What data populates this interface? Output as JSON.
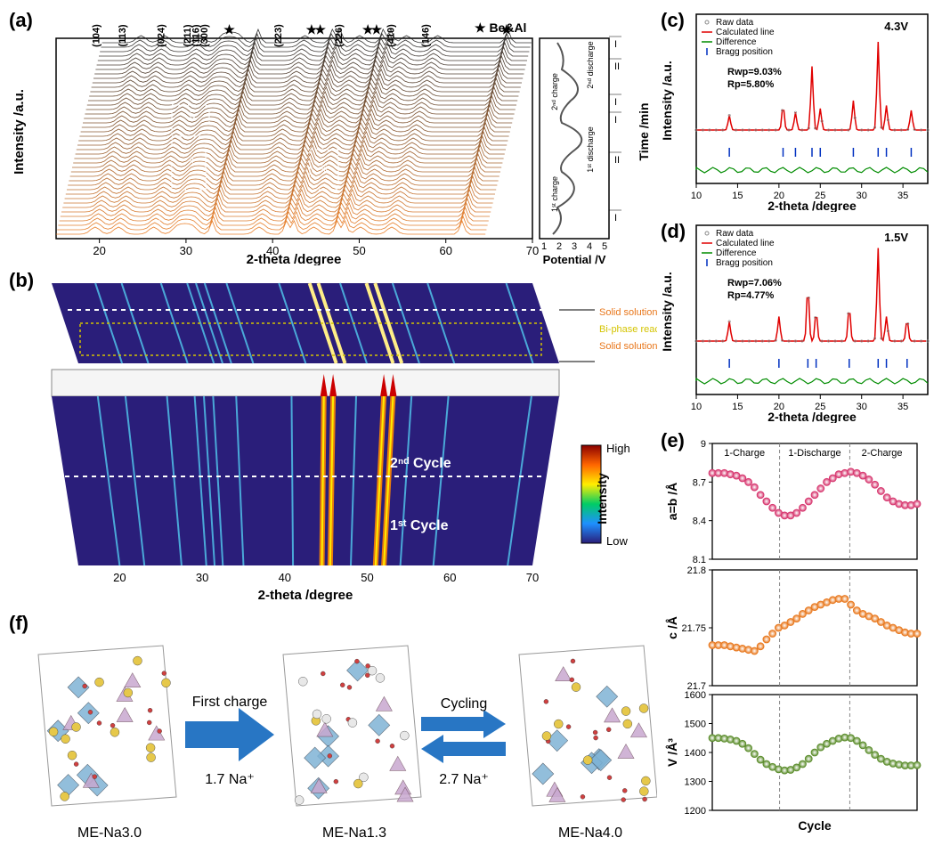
{
  "panelA": {
    "label": "(a)",
    "miller_indices": [
      "(104)",
      "(113)",
      "(024)",
      "(211)",
      "(116)",
      "(300)",
      "(223)",
      "(226)",
      "(410)",
      "(146)"
    ],
    "star_label": "★ Be&Al",
    "y_label": "Intensity /a.u.",
    "x_label": "2-theta /degree",
    "x_ticks": [
      "20",
      "30",
      "40",
      "50",
      "60",
      "70"
    ],
    "roman_labels": [
      "I",
      "II",
      "I",
      "I",
      "II",
      "I"
    ],
    "inner_markers": [
      "iv",
      "ii",
      "iii",
      "i"
    ],
    "potential_label": "Potential /V",
    "potential_ticks": [
      "1",
      "2",
      "3",
      "4",
      "5"
    ],
    "time_label": "Time /min",
    "charge_labels": [
      "1ˢᵗ charge",
      "2ⁿᵈ charge",
      "1ˢᵗ discharge",
      "2ⁿᵈ discharge"
    ],
    "waterfall_top_color": "#202020",
    "waterfall_bottom_color": "#e8761a"
  },
  "panelB": {
    "label": "(b)",
    "x_label": "2-theta /degree",
    "x_ticks": [
      "20",
      "30",
      "40",
      "50",
      "60",
      "70"
    ],
    "cycle_labels": [
      "1ˢᵗ Cycle",
      "2ⁿᵈ Cycle"
    ],
    "reaction_labels": [
      "Solid solution reaction",
      "Bi-phase reaction",
      "Solid solution reaction"
    ],
    "reaction_colors": [
      "#e8761a",
      "#d4c400",
      "#e8761a"
    ],
    "colorbar_label": "Intensity",
    "colorbar_high": "High",
    "colorbar_low": "Low",
    "heatmap_bg": "#2a1e7a",
    "heatmap_lines": "#4aa8d8"
  },
  "panelC": {
    "label": "(c)",
    "voltage": "4.3V",
    "legend": [
      "Raw data",
      "Calculated line",
      "Difference",
      "Bragg position"
    ],
    "legend_markers": [
      "circle",
      "line-red",
      "line-green",
      "tick-blue"
    ],
    "rwp": "Rwp=9.03%",
    "rp": "Rp=5.80%",
    "y_label": "Intensity /a.u.",
    "x_label": "2-theta /degree",
    "x_ticks": [
      "10",
      "15",
      "20",
      "25",
      "30",
      "35"
    ],
    "peaks": [
      14,
      20.5,
      22,
      24,
      25,
      29,
      32,
      33,
      36
    ],
    "peak_heights": [
      0.15,
      0.25,
      0.18,
      0.65,
      0.22,
      0.3,
      0.9,
      0.25,
      0.2
    ],
    "raw_color": "#888888",
    "calc_color": "#e00000",
    "diff_color": "#008c00",
    "bragg_color": "#0030c0"
  },
  "panelD": {
    "label": "(d)",
    "voltage": "1.5V",
    "legend": [
      "Raw data",
      "Calculated line",
      "Difference",
      "Bragg position"
    ],
    "rwp": "Rwp=7.06%",
    "rp": "Rp=4.77%",
    "y_label": "Intensity /a.u.",
    "x_label": "2-theta /degree",
    "x_ticks": [
      "10",
      "15",
      "20",
      "25",
      "30",
      "35"
    ],
    "peaks": [
      14,
      20,
      23.5,
      24.5,
      28.5,
      32,
      33,
      35.5
    ],
    "peak_heights": [
      0.2,
      0.25,
      0.55,
      0.3,
      0.35,
      0.95,
      0.25,
      0.22
    ],
    "raw_color": "#888888",
    "calc_color": "#e00000",
    "diff_color": "#008c00",
    "bragg_color": "#0030c0"
  },
  "panelE": {
    "label": "(e)",
    "x_label": "Cycle",
    "phase_labels": [
      "1-Charge",
      "1-Discharge",
      "2-Charge"
    ],
    "plots": [
      {
        "y_label": "a=b /Å",
        "y_ticks": [
          "8.1",
          "8.4",
          "8.7",
          "9.0"
        ],
        "color": "#d6336c",
        "data": [
          8.77,
          8.77,
          8.77,
          8.76,
          8.75,
          8.73,
          8.7,
          8.66,
          8.6,
          8.55,
          8.5,
          8.46,
          8.44,
          8.44,
          8.46,
          8.5,
          8.55,
          8.6,
          8.65,
          8.7,
          8.73,
          8.76,
          8.77,
          8.78,
          8.77,
          8.75,
          8.72,
          8.68,
          8.63,
          8.58,
          8.55,
          8.53,
          8.52,
          8.52,
          8.53
        ]
      },
      {
        "y_label": "c /Å",
        "y_ticks": [
          "21.70",
          "21.75",
          "21.80"
        ],
        "color": "#e8761a",
        "data": [
          21.735,
          21.735,
          21.735,
          21.734,
          21.733,
          21.732,
          21.731,
          21.73,
          21.734,
          21.74,
          21.745,
          21.75,
          21.752,
          21.755,
          21.758,
          21.762,
          21.765,
          21.768,
          21.77,
          21.772,
          21.774,
          21.775,
          21.775,
          21.77,
          21.765,
          21.762,
          21.76,
          21.758,
          21.755,
          21.752,
          21.75,
          21.748,
          21.746,
          21.745,
          21.745
        ]
      },
      {
        "y_label": "V /Å³",
        "y_ticks": [
          "1200",
          "1300",
          "1400",
          "1500",
          "1600"
        ],
        "color": "#5a8c2a",
        "data": [
          1450,
          1450,
          1448,
          1445,
          1440,
          1430,
          1415,
          1395,
          1375,
          1360,
          1350,
          1342,
          1338,
          1340,
          1348,
          1360,
          1378,
          1400,
          1418,
          1430,
          1440,
          1448,
          1452,
          1450,
          1440,
          1425,
          1408,
          1392,
          1378,
          1368,
          1362,
          1358,
          1355,
          1355,
          1356
        ]
      }
    ]
  },
  "panelF": {
    "label": "(f)",
    "structures": [
      "ME-Na3.0",
      "ME-Na1.3",
      "ME-Na4.0"
    ],
    "arrow1_top": "First charge",
    "arrow1_bottom": "1.7 Na⁺",
    "arrow2_top": "Cycling",
    "arrow2_bottom": "2.7 Na⁺",
    "arrow_color": "#2876c4",
    "atom_colors": {
      "na": "#e6c84a",
      "poly1": "#7fb3d5",
      "poly2": "#c8a8d0",
      "o": "#d04040",
      "vac": "#e8e8e8"
    }
  }
}
